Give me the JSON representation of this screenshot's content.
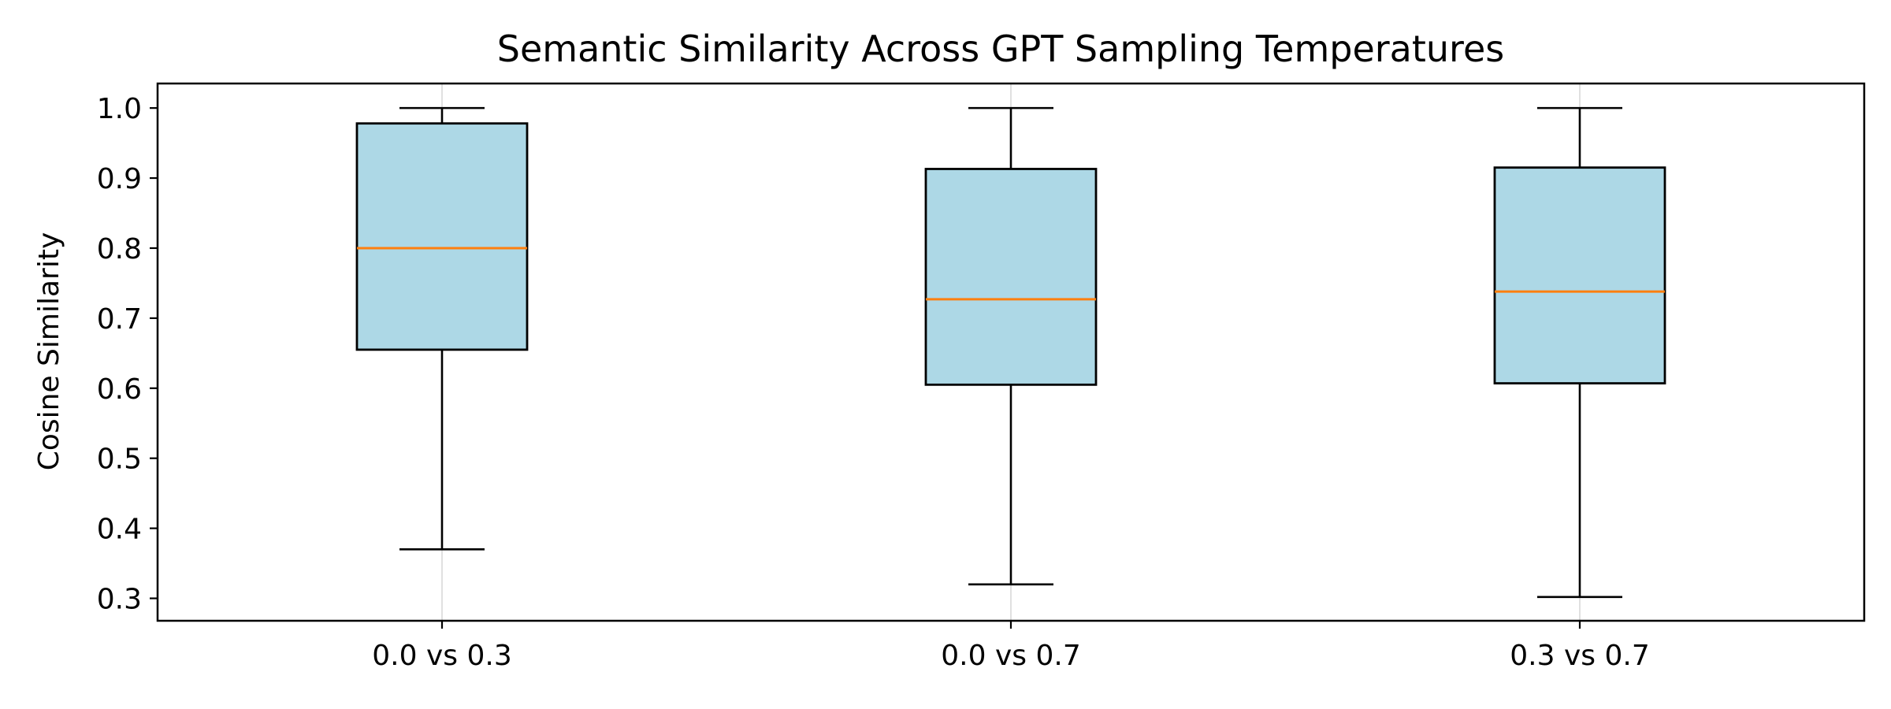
{
  "chart_data": {
    "type": "boxplot",
    "title": "Semantic Similarity Across GPT Sampling Temperatures",
    "xlabel": "",
    "ylabel": "Cosine Similarity",
    "categories": [
      "0.0 vs 0.3",
      "0.0 vs 0.7",
      "0.3 vs 0.7"
    ],
    "boxes": [
      {
        "whisker_low": 0.37,
        "q1": 0.655,
        "median": 0.8,
        "q3": 0.978,
        "whisker_high": 1.0
      },
      {
        "whisker_low": 0.32,
        "q1": 0.605,
        "median": 0.727,
        "q3": 0.913,
        "whisker_high": 1.0
      },
      {
        "whisker_low": 0.302,
        "q1": 0.607,
        "median": 0.738,
        "q3": 0.915,
        "whisker_high": 1.0
      }
    ],
    "ylim": [
      0.268,
      1.035
    ],
    "yticks": [
      "0.3",
      "0.4",
      "0.5",
      "0.6",
      "0.7",
      "0.8",
      "0.9",
      "1.0"
    ],
    "xgrid": true,
    "colors": {
      "box_fill": "#add8e6",
      "box_edge": "#000000",
      "median": "#ff7f0e",
      "grid": "#e0e0e0"
    }
  }
}
